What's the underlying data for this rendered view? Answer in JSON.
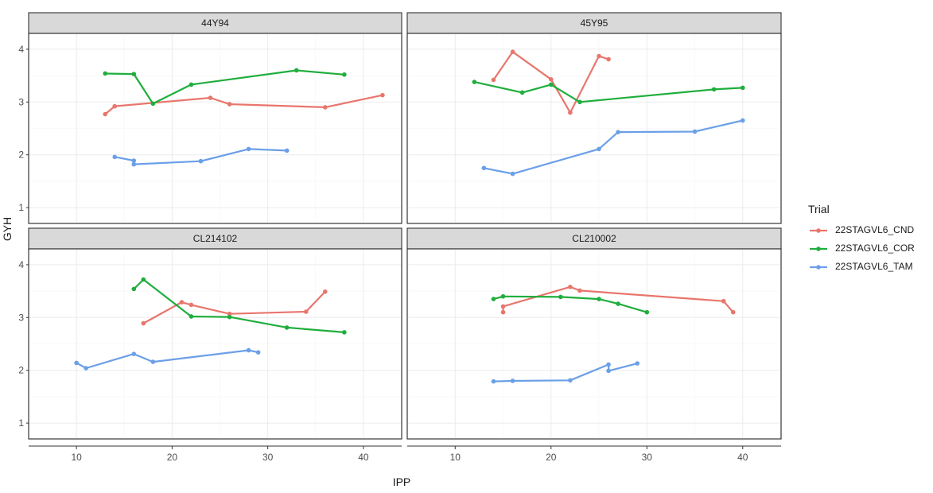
{
  "chart_data": {
    "type": "line",
    "xlabel": "IPP",
    "ylabel": "GYH",
    "xlim": [
      5,
      44
    ],
    "ylim": [
      0.7,
      4.3
    ],
    "xticks": [
      10,
      20,
      30,
      40
    ],
    "yticks": [
      1,
      2,
      3,
      4
    ],
    "grid": true,
    "legend": {
      "title": "Trial",
      "placement": "right",
      "entries": [
        "22STAGVL6_CND",
        "22STAGVL6_COR",
        "22STAGVL6_TAM"
      ]
    },
    "colors": {
      "22STAGVL6_CND": "#e8766d",
      "22STAGVL6_COR": "#1fae3c",
      "22STAGVL6_TAM": "#6b9fe8"
    },
    "panels": [
      {
        "title": "44Y94",
        "series": [
          {
            "name": "22STAGVL6_CND",
            "x": [
              13,
              14,
              24,
              26,
              36,
              42
            ],
            "y": [
              2.77,
              2.92,
              3.08,
              2.96,
              2.9,
              3.13
            ]
          },
          {
            "name": "22STAGVL6_COR",
            "x": [
              13,
              16,
              18,
              22,
              33,
              38
            ],
            "y": [
              3.54,
              3.53,
              2.97,
              3.33,
              3.6,
              3.52
            ]
          },
          {
            "name": "22STAGVL6_TAM",
            "x": [
              14,
              16,
              16,
              23,
              28,
              32
            ],
            "y": [
              1.96,
              1.89,
              1.82,
              1.88,
              2.11,
              2.08
            ]
          }
        ]
      },
      {
        "title": "45Y95",
        "series": [
          {
            "name": "22STAGVL6_CND",
            "x": [
              14,
              16,
              20,
              22,
              25,
              26
            ],
            "y": [
              3.42,
              3.95,
              3.43,
              2.8,
              3.87,
              3.81
            ]
          },
          {
            "name": "22STAGVL6_COR",
            "x": [
              12,
              17,
              20,
              23,
              37,
              40
            ],
            "y": [
              3.38,
              3.18,
              3.33,
              3.0,
              3.24,
              3.27
            ]
          },
          {
            "name": "22STAGVL6_TAM",
            "x": [
              13,
              16,
              25,
              27,
              35,
              40
            ],
            "y": [
              1.75,
              1.64,
              2.11,
              2.43,
              2.44,
              2.65
            ]
          }
        ]
      },
      {
        "title": "CL214102",
        "series": [
          {
            "name": "22STAGVL6_CND",
            "x": [
              17,
              21,
              22,
              26,
              34,
              36
            ],
            "y": [
              2.89,
              3.29,
              3.24,
              3.07,
              3.11,
              3.49
            ]
          },
          {
            "name": "22STAGVL6_COR",
            "x": [
              16,
              17,
              22,
              26,
              32,
              38
            ],
            "y": [
              3.54,
              3.72,
              3.02,
              3.01,
              2.81,
              2.72
            ]
          },
          {
            "name": "22STAGVL6_TAM",
            "x": [
              10,
              11,
              16,
              18,
              28,
              29
            ],
            "y": [
              2.14,
              2.04,
              2.31,
              2.16,
              2.38,
              2.34
            ]
          }
        ]
      },
      {
        "title": "CL210002",
        "series": [
          {
            "name": "22STAGVL6_CND",
            "x": [
              15,
              15,
              22,
              23,
              38,
              39
            ],
            "y": [
              3.1,
              3.21,
              3.58,
              3.51,
              3.31,
              3.1
            ]
          },
          {
            "name": "22STAGVL6_COR",
            "x": [
              14,
              15,
              21,
              25,
              27,
              30
            ],
            "y": [
              3.35,
              3.4,
              3.39,
              3.35,
              3.26,
              3.1
            ]
          },
          {
            "name": "22STAGVL6_TAM",
            "x": [
              14,
              16,
              22,
              26,
              26,
              29
            ],
            "y": [
              1.79,
              1.8,
              1.81,
              2.11,
              1.99,
              2.13
            ]
          }
        ]
      }
    ]
  }
}
